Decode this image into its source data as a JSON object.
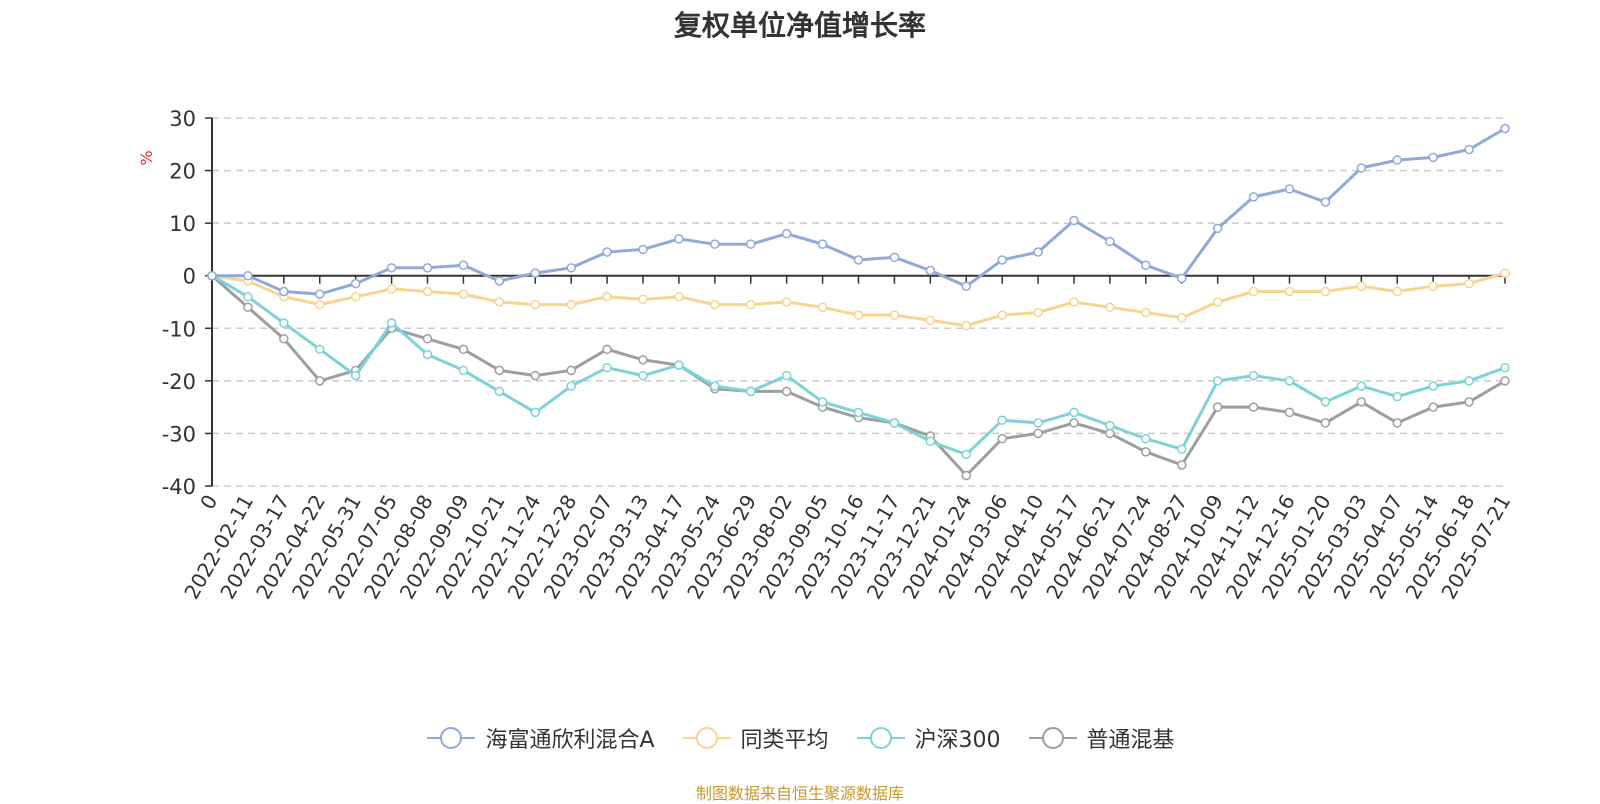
{
  "chart_data": {
    "type": "line",
    "title": "复权单位净值增长率",
    "ylabel": "%",
    "ylim": [
      -40,
      30
    ],
    "yticks": [
      30,
      20,
      10,
      0,
      -10,
      -20,
      -30,
      -40
    ],
    "grid": true,
    "legend_position": "bottom",
    "x": [
      "0",
      "2022-02-11",
      "2022-03-17",
      "2022-04-22",
      "2022-05-31",
      "2022-07-05",
      "2022-08-08",
      "2022-09-09",
      "2022-10-21",
      "2022-11-24",
      "2022-12-28",
      "2023-02-07",
      "2023-03-13",
      "2023-04-17",
      "2023-05-24",
      "2023-06-29",
      "2023-08-02",
      "2023-09-05",
      "2023-10-16",
      "2023-11-17",
      "2023-12-21",
      "2024-01-24",
      "2024-03-06",
      "2024-04-10",
      "2024-05-17",
      "2024-06-21",
      "2024-07-24",
      "2024-08-27",
      "2024-10-09",
      "2024-11-12",
      "2024-12-16",
      "2025-01-20",
      "2025-03-03",
      "2025-04-07",
      "2025-05-14",
      "2025-06-18",
      "2025-07-21"
    ],
    "series": [
      {
        "name": "海富通欣利混合A",
        "color": "#8fa9d8",
        "values": [
          0,
          0,
          -3,
          -3.5,
          -1.5,
          1.5,
          1.5,
          2,
          -1,
          0.5,
          1.5,
          4.5,
          5,
          7,
          6,
          6,
          8,
          6,
          3,
          3.5,
          1,
          -2,
          3,
          4.5,
          10.5,
          6.5,
          2,
          -0.5,
          9,
          15,
          16.5,
          14,
          20.5,
          22,
          22.5,
          24,
          28
        ]
      },
      {
        "name": "同类平均",
        "color": "#f9d48f",
        "values": [
          0,
          -1,
          -4,
          -5.5,
          -4,
          -2.5,
          -3,
          -3.5,
          -5,
          -5.5,
          -5.5,
          -4,
          -4.5,
          -4,
          -5.5,
          -5.5,
          -5,
          -6,
          -7.5,
          -7.5,
          -8.5,
          -9.5,
          -7.5,
          -7,
          -5,
          -6,
          -7,
          -8,
          -5,
          -3,
          -3,
          -3,
          -2,
          -3,
          -2,
          -1.5,
          0.5
        ]
      },
      {
        "name": "沪深300",
        "color": "#7dd3d8",
        "values": [
          0,
          -4,
          -9,
          -14,
          -19,
          -9,
          -15,
          -18,
          -22,
          -26,
          -21,
          -17.5,
          -19,
          -17,
          -21,
          -22,
          -19,
          -24,
          -26,
          -28,
          -31.5,
          -34,
          -27.5,
          -28,
          -26,
          -28.5,
          -31,
          -33,
          -20,
          -19,
          -20,
          -24,
          -21,
          -23,
          -21,
          -20,
          -17.5
        ]
      },
      {
        "name": "普通混基",
        "color": "#9e9e9e",
        "values": [
          0,
          -6,
          -12,
          -20,
          -18,
          -10,
          -12,
          -14,
          -18,
          -19,
          -18,
          -14,
          -16,
          -17,
          -21.5,
          -22,
          -22,
          -25,
          -27,
          -28,
          -30.5,
          -38,
          -31,
          -30,
          -28,
          -30,
          -33.5,
          -36,
          -25,
          -25,
          -26,
          -28,
          -24,
          -28,
          -25,
          -24,
          -20
        ]
      }
    ]
  },
  "source_note": "制图数据来自恒生聚源数据库"
}
